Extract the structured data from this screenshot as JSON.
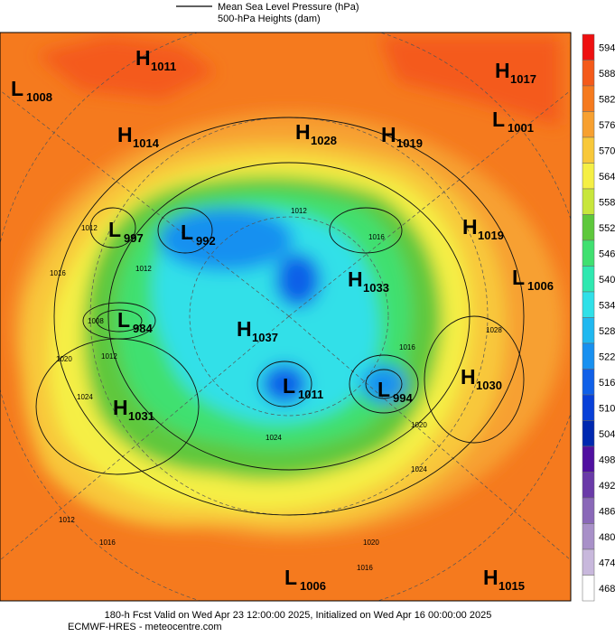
{
  "legend": {
    "pressure": "Mean Sea Level Pressure (hPa)",
    "heights": "500-hPa Heights (dam)"
  },
  "colorbar": {
    "levels": [
      594,
      588,
      582,
      576,
      570,
      564,
      558,
      552,
      546,
      540,
      534,
      528,
      522,
      516,
      510,
      504,
      498,
      492,
      486,
      480,
      474,
      468
    ],
    "colors": [
      "#ee1010",
      "#f45a1a",
      "#f57a1e",
      "#f7a030",
      "#f8c83a",
      "#f5ef45",
      "#c8e63c",
      "#5ec83c",
      "#40e070",
      "#30e8b0",
      "#30e0e8",
      "#20b8f0",
      "#1890f0",
      "#1060e8",
      "#0840d8",
      "#0028b0",
      "#5010a0",
      "#6a3aa8",
      "#8a68b8",
      "#a890c8",
      "#c8b8dc",
      "#ffffff"
    ]
  },
  "centers": [
    {
      "kind": "H",
      "value": 1011
    },
    {
      "kind": "L",
      "value": 1008
    },
    {
      "kind": "H",
      "value": 1017
    },
    {
      "kind": "L",
      "value": 1001
    },
    {
      "kind": "H",
      "value": 1014
    },
    {
      "kind": "H",
      "value": 1028
    },
    {
      "kind": "H",
      "value": 1019
    },
    {
      "kind": "L",
      "value": 997
    },
    {
      "kind": "L",
      "value": 992
    },
    {
      "kind": "H",
      "value": 1019
    },
    {
      "kind": "H",
      "value": 1033
    },
    {
      "kind": "L",
      "value": 1006
    },
    {
      "kind": "L",
      "value": 984
    },
    {
      "kind": "H",
      "value": 1037
    },
    {
      "kind": "H",
      "value": 1030
    },
    {
      "kind": "L",
      "value": 1011
    },
    {
      "kind": "L",
      "value": 994
    },
    {
      "kind": "H",
      "value": 1031
    },
    {
      "kind": "L",
      "value": 1006
    },
    {
      "kind": "H",
      "value": 1015
    }
  ],
  "isobar_labels": [
    1012,
    1016,
    1008,
    1012,
    1020,
    1024,
    1012,
    1016,
    1012,
    1016,
    1016,
    1028,
    1020,
    1024,
    1024,
    1020,
    1016,
    1012
  ],
  "footer": {
    "valid": "180-h Fcst Valid on Wed Apr 23 12:00:00 2025, Initialized on Wed Apr 16 00:00:00 2025",
    "source": "ECMWF-HRES - meteocentre.com"
  }
}
